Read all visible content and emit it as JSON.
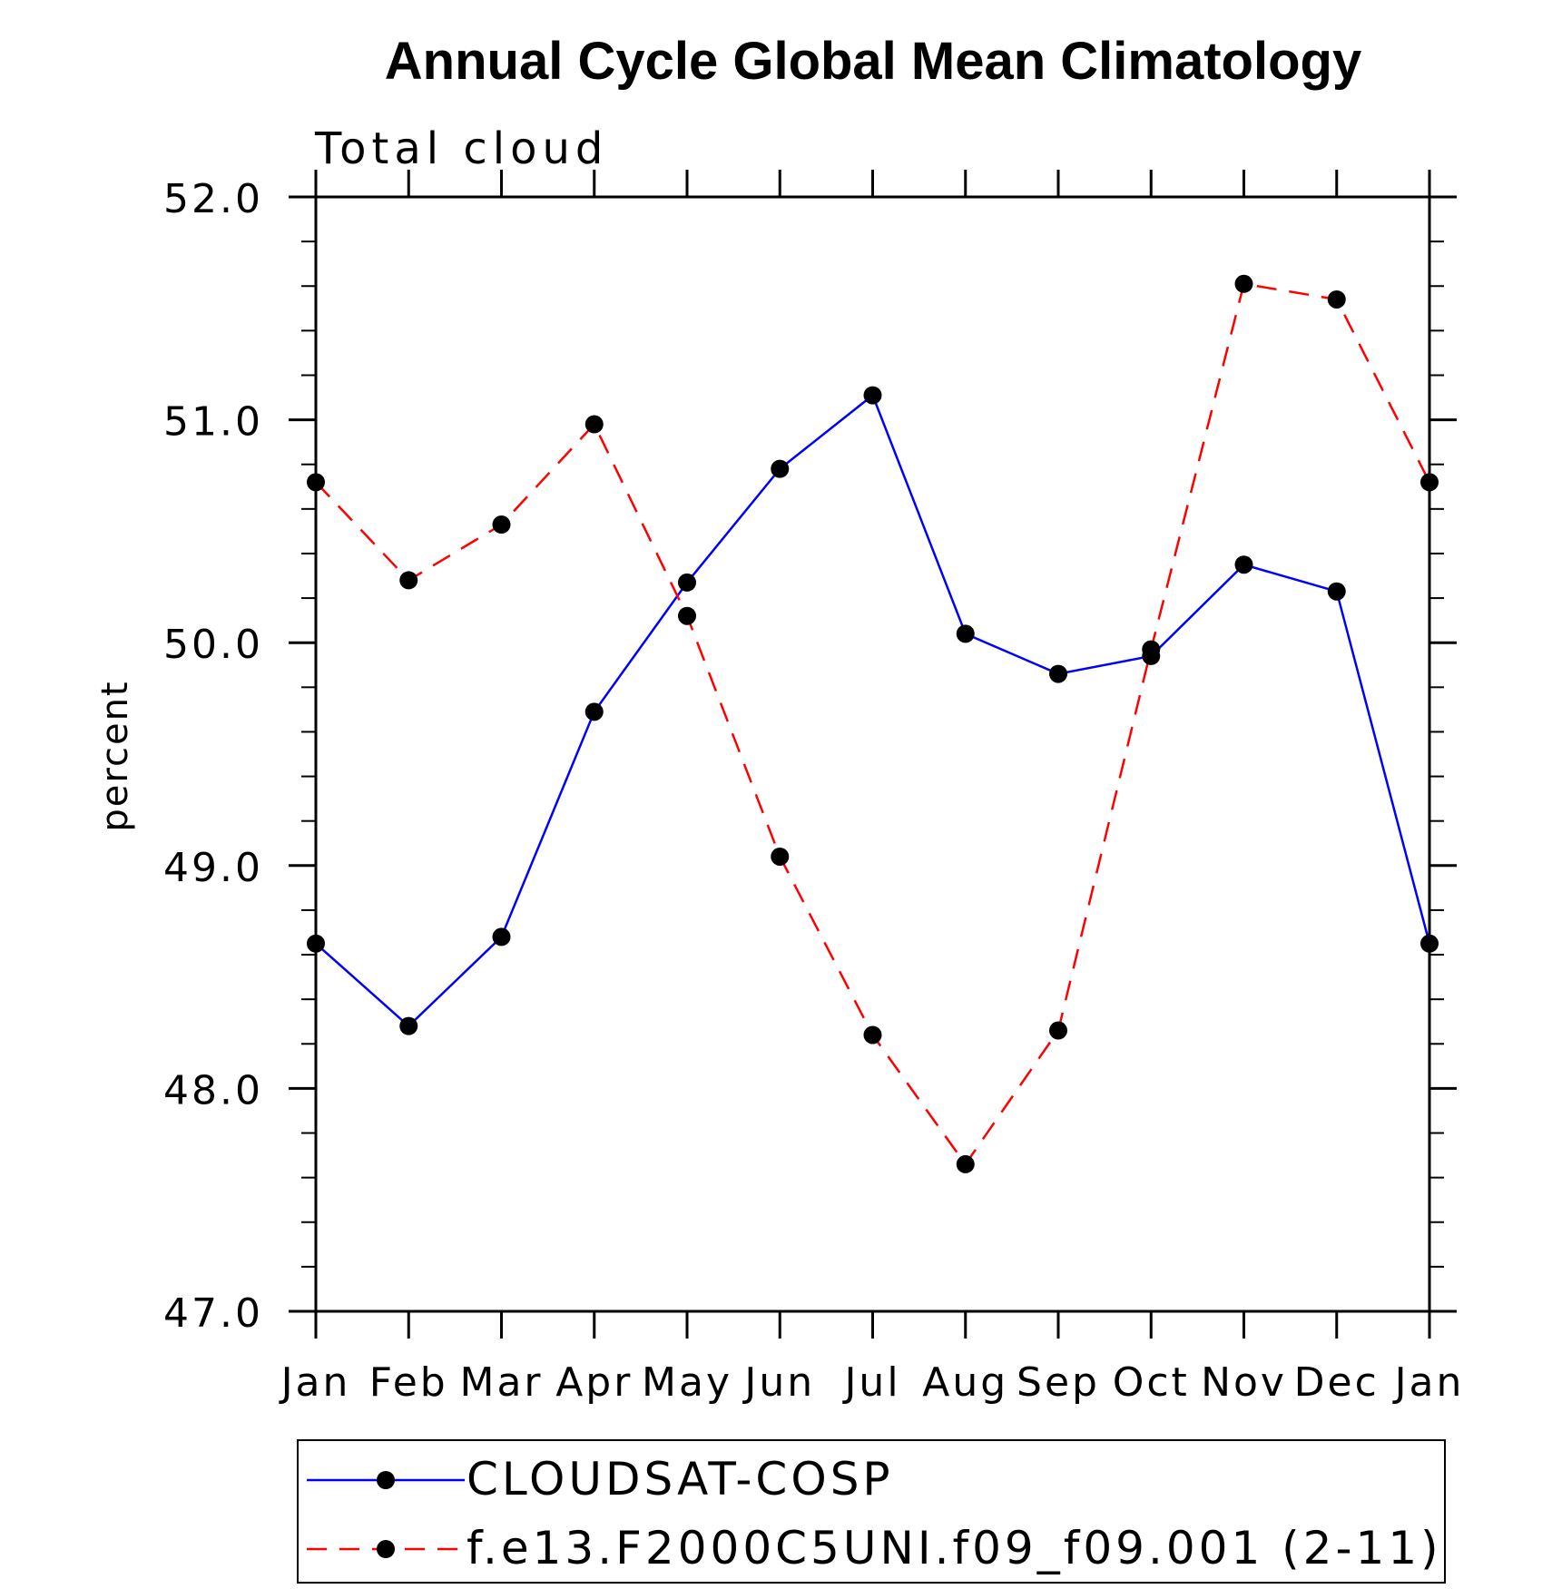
{
  "chart_data": {
    "type": "line",
    "title": "Annual Cycle Global Mean Climatology",
    "subtitle": "Total cloud",
    "xlabel": "",
    "ylabel": "percent",
    "categories": [
      "Jan",
      "Feb",
      "Mar",
      "Apr",
      "May",
      "Jun",
      "Jul",
      "Aug",
      "Sep",
      "Oct",
      "Nov",
      "Dec",
      "Jan"
    ],
    "ylim": [
      47.0,
      52.0
    ],
    "yticks": [
      "47.0",
      "48.0",
      "49.0",
      "50.0",
      "51.0",
      "52.0"
    ],
    "legend_position": "bottom",
    "series": [
      {
        "name": "CLOUDSAT-COSP",
        "color": "#0000ff",
        "dash": "solid",
        "values": [
          48.65,
          48.28,
          48.68,
          49.69,
          50.27,
          50.78,
          51.11,
          50.04,
          49.86,
          49.94,
          50.35,
          50.23,
          48.65
        ]
      },
      {
        "name": "f.e13.F2000C5UNI.f09_f09.001 (2-11)",
        "color": "#ff0000",
        "dash": "dashed",
        "values": [
          50.72,
          50.28,
          50.53,
          50.98,
          50.12,
          49.04,
          48.24,
          47.66,
          48.26,
          49.97,
          51.61,
          51.54,
          50.72
        ]
      }
    ]
  }
}
